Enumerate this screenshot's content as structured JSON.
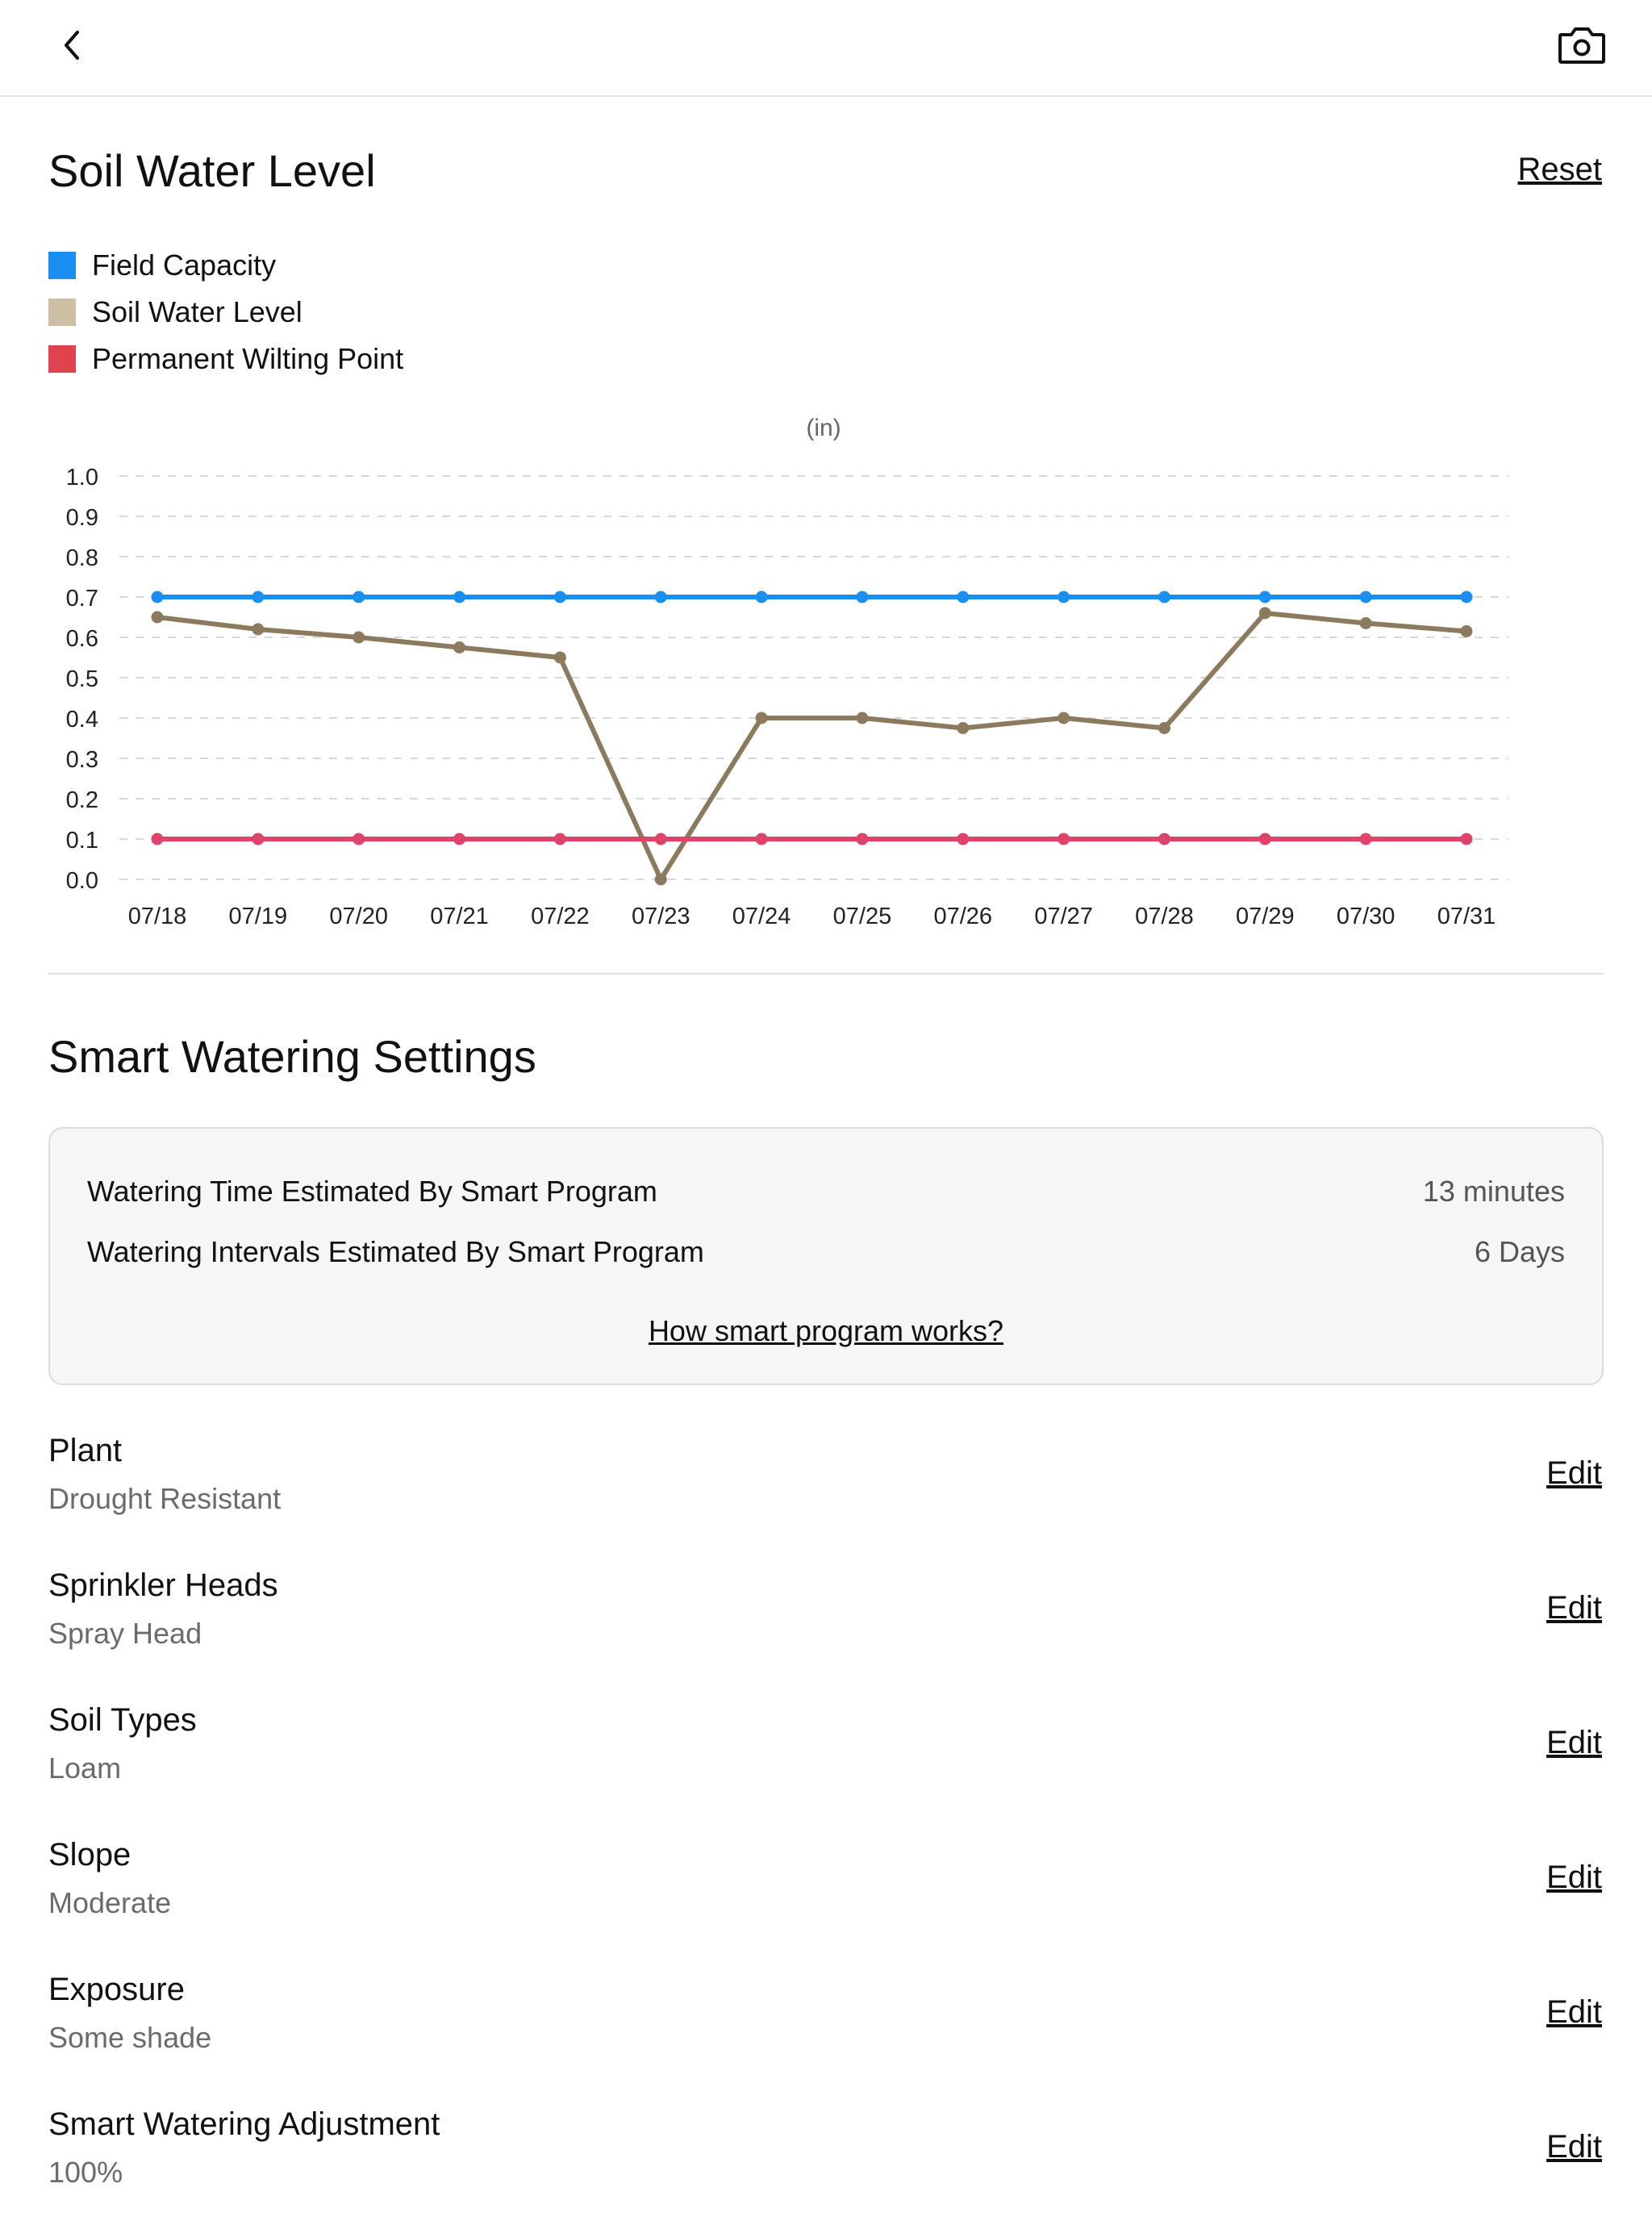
{
  "header": {
    "back_icon": "chevron-left-icon",
    "camera_icon": "camera-icon"
  },
  "soil_section": {
    "title": "Soil Water Level",
    "reset_label": "Reset",
    "legend": [
      {
        "label": "Field Capacity",
        "color": "#1a8ff2"
      },
      {
        "label": "Soil Water Level",
        "color": "#cdbfa6"
      },
      {
        "label": "Permanent Wilting Point",
        "color": "#e0434f"
      }
    ]
  },
  "chart_data": {
    "type": "line",
    "title": "",
    "unit_label": "(in)",
    "xlabel": "",
    "ylabel": "",
    "ylim": [
      0,
      1.0
    ],
    "yticks": [
      "0.0",
      "0.1",
      "0.2",
      "0.3",
      "0.4",
      "0.5",
      "0.6",
      "0.7",
      "0.8",
      "0.9",
      "1.0"
    ],
    "grid": true,
    "categories": [
      "07/18",
      "07/19",
      "07/20",
      "07/21",
      "07/22",
      "07/23",
      "07/24",
      "07/25",
      "07/26",
      "07/27",
      "07/28",
      "07/29",
      "07/30",
      "07/31"
    ],
    "series": [
      {
        "name": "Field Capacity",
        "color": "#1a8ff2",
        "values": [
          0.7,
          0.7,
          0.7,
          0.7,
          0.7,
          0.7,
          0.7,
          0.7,
          0.7,
          0.7,
          0.7,
          0.7,
          0.7,
          0.7
        ]
      },
      {
        "name": "Soil Water Level",
        "color": "#8c7a5e",
        "values": [
          0.65,
          0.62,
          0.6,
          0.575,
          0.55,
          0.0,
          0.4,
          0.4,
          0.375,
          0.4,
          0.375,
          0.66,
          0.635,
          0.615
        ]
      },
      {
        "name": "Permanent Wilting Point",
        "color": "#e0436a",
        "values": [
          0.1,
          0.1,
          0.1,
          0.1,
          0.1,
          0.1,
          0.1,
          0.1,
          0.1,
          0.1,
          0.1,
          0.1,
          0.1,
          0.1
        ]
      }
    ]
  },
  "smart_section": {
    "title": "Smart Watering Settings",
    "card": {
      "rows": [
        {
          "label": "Watering Time Estimated By Smart Program",
          "value": "13 minutes"
        },
        {
          "label": "Watering Intervals Estimated By Smart Program",
          "value": "6 Days"
        }
      ],
      "link": "How smart program works?"
    },
    "settings": [
      {
        "title": "Plant",
        "value": "Drought Resistant",
        "edit": "Edit"
      },
      {
        "title": "Sprinkler Heads",
        "value": "Spray Head",
        "edit": "Edit"
      },
      {
        "title": "Soil Types",
        "value": "Loam",
        "edit": "Edit"
      },
      {
        "title": "Slope",
        "value": "Moderate",
        "edit": "Edit"
      },
      {
        "title": "Exposure",
        "value": "Some shade",
        "edit": "Edit"
      },
      {
        "title": "Smart Watering Adjustment",
        "value": "100%",
        "edit": "Edit"
      }
    ]
  }
}
